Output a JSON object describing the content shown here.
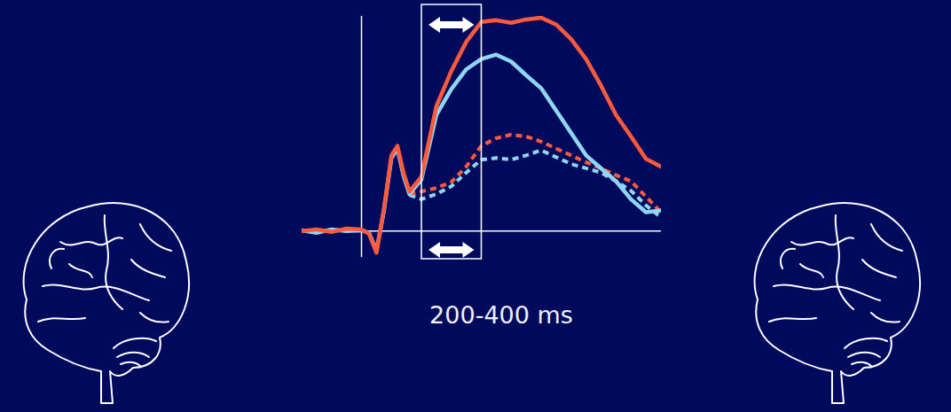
{
  "chart_data": {
    "type": "line",
    "x": [
      -200,
      -150,
      -100,
      -50,
      0,
      25,
      50,
      75,
      100,
      120,
      140,
      160,
      200,
      250,
      300,
      350,
      400,
      450,
      500,
      550,
      600,
      650,
      700,
      750,
      800,
      850,
      900,
      950,
      1000
    ],
    "xlim": [
      -200,
      1000
    ],
    "ylim": [
      -3,
      25
    ],
    "tick_labels": false,
    "grid": false,
    "series": [
      {
        "color": "#ff5a3c",
        "line_style": "solid",
        "values": [
          0,
          0.2,
          -0.1,
          0.3,
          0.2,
          -0.3,
          -2.5,
          2.6,
          8.8,
          9.9,
          6.8,
          4.6,
          6.3,
          14.5,
          18.6,
          22.0,
          24.3,
          24.5,
          24.2,
          24.6,
          24.8,
          24.0,
          22.3,
          20.0,
          16.9,
          13.5,
          11.0,
          8.4,
          7.5
        ]
      },
      {
        "color": "#8fd6f2",
        "line_style": "solid",
        "values": [
          0.1,
          -0.2,
          0.2,
          0,
          0.1,
          -0.2,
          -2.3,
          2.4,
          8.5,
          9.6,
          6.5,
          4.3,
          6.0,
          13.5,
          16.5,
          18.8,
          20.0,
          20.5,
          19.7,
          18.1,
          16.6,
          14.0,
          11.4,
          8.8,
          7.3,
          5.8,
          3.7,
          2.2,
          2.4
        ]
      },
      {
        "color": "#ff5a3c",
        "line_style": "dashed",
        "values": [
          null,
          null,
          null,
          null,
          null,
          null,
          null,
          null,
          null,
          null,
          null,
          4.3,
          4.6,
          5.0,
          5.7,
          7.5,
          9.9,
          10.8,
          11.2,
          11.0,
          10.4,
          9.6,
          8.8,
          8.0,
          7.3,
          6.5,
          5.8,
          4.0,
          2.2
        ]
      },
      {
        "color": "#8fd6f2",
        "line_style": "dashed",
        "values": [
          null,
          null,
          null,
          null,
          null,
          null,
          null,
          null,
          null,
          null,
          null,
          4.2,
          3.7,
          4.3,
          5.2,
          6.8,
          8.3,
          8.5,
          8.3,
          8.8,
          9.4,
          8.6,
          7.8,
          7.3,
          6.8,
          5.8,
          4.7,
          3.0,
          1.6
        ]
      }
    ],
    "annotations": [
      {
        "text": "200-400 ms",
        "x_range": [
          200,
          400
        ]
      }
    ]
  }
}
